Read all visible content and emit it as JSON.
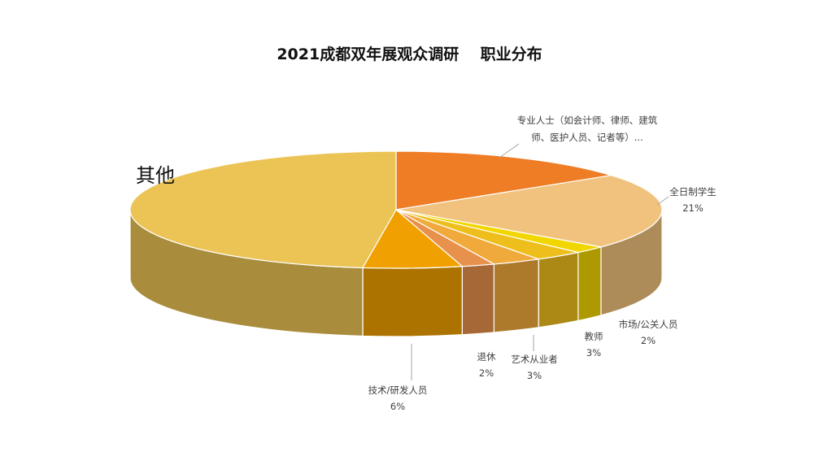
{
  "chart_data": {
    "type": "pie",
    "title": "2021成都双年展观众调研    职业分布",
    "slices": [
      {
        "name": "专业人士（如会计师、律师、建筑师、医护人员、记者等）...",
        "value": 15,
        "value_label": "",
        "label_lines": [
          "专业人士（如会计师、律师、建筑",
          "师、医护人员、记者等）..."
        ],
        "color": "#EE7D26"
      },
      {
        "name": "全日制学生",
        "value": 21,
        "value_label": "21%",
        "label_lines": [
          "全日制学生"
        ],
        "color": "#F1C27D"
      },
      {
        "name": "市场/公关人员",
        "value": 2,
        "value_label": "2%",
        "label_lines": [
          "市场/公关人员"
        ],
        "color": "#F2D600"
      },
      {
        "name": "教师",
        "value": 3,
        "value_label": "3%",
        "label_lines": [
          "教师"
        ],
        "color": "#EDBE1C"
      },
      {
        "name": "艺术从业者",
        "value": 3,
        "value_label": "3%",
        "label_lines": [
          "艺术从业者"
        ],
        "color": "#F0AA3C"
      },
      {
        "name": "退休",
        "value": 2,
        "value_label": "2%",
        "label_lines": [
          "退休"
        ],
        "color": "#E8914D"
      },
      {
        "name": "技术/研发人员",
        "value": 6,
        "value_label": "6%",
        "label_lines": [
          "技术/研发人员"
        ],
        "color": "#F0A000"
      },
      {
        "name": "其他",
        "value": 48,
        "value_label": "",
        "label_lines": [
          "其他"
        ],
        "color": "#EBC455"
      }
    ]
  }
}
